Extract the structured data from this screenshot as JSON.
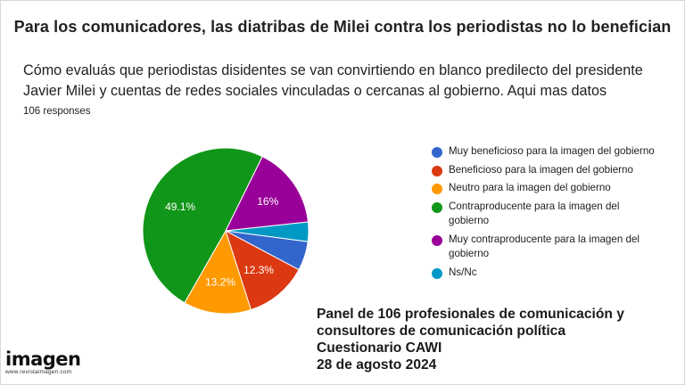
{
  "headline": "Para los comunicadores, las diatribas de Milei contra los periodistas no lo benefician",
  "question": "Cómo evaluás que periodistas disidentes se van convirtiendo en blanco predilecto del presidente Javier Milei y cuentas de redes sociales vinculadas o cercanas al gobierno. Aqui mas datos",
  "responses": "106 responses",
  "chart_data": {
    "type": "pie",
    "title": "",
    "slices": [
      {
        "label": "Muy beneficioso para la imagen del gobierno",
        "value": 5.7,
        "color": "#3366cc",
        "display": ""
      },
      {
        "label": "Beneficioso para la imagen del gobierno",
        "value": 12.3,
        "color": "#dc3912",
        "display": "12.3%"
      },
      {
        "label": "Neutro para la imagen del gobierno",
        "value": 13.2,
        "color": "#ff9900",
        "display": "13.2%"
      },
      {
        "label": "Contraproducente para la imagen del gobierno",
        "value": 49.1,
        "color": "#109618",
        "display": "49.1%"
      },
      {
        "label": "Muy contraproducente para la imagen del gobierno",
        "value": 16.0,
        "color": "#990099",
        "display": "16%"
      },
      {
        "label": "Ns/Nc",
        "value": 3.8,
        "color": "#0099c6",
        "display": ""
      }
    ],
    "legend_position": "right"
  },
  "panel": {
    "line1": "Panel de 106 profesionales de comunicación y",
    "line2": "consultores de comunicación política",
    "line3": "Cuestionario CAWI",
    "line4": "28 de agosto 2024"
  },
  "logo": {
    "word": "imagen",
    "url": "www.revistaimagen.com"
  }
}
